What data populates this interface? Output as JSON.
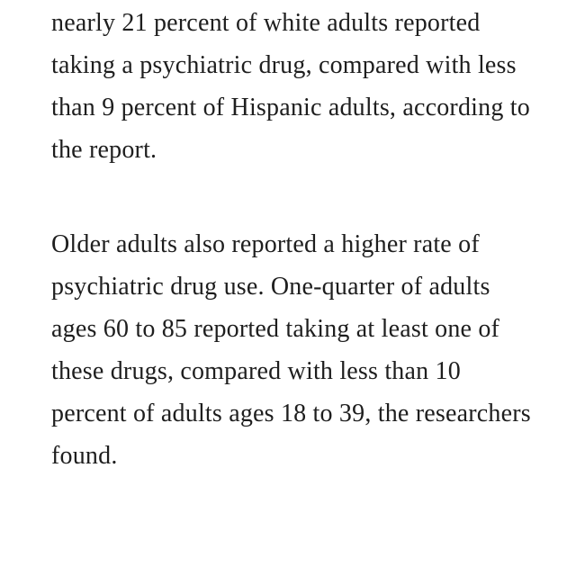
{
  "article": {
    "paragraphs": [
      "nearly 21 percent of white adults reported taking a psychiatric drug, compared with less than 9 percent of Hispanic adults, according to the report.",
      "Older adults also reported a higher rate of psychiatric drug use. One-quarter of adults ages 60 to 85 reported taking at least one of these drugs, compared with less than 10 percent of adults ages 18 to 39, the researchers found."
    ]
  },
  "colors": {
    "text": "#1e1e1e",
    "background": "#ffffff"
  }
}
